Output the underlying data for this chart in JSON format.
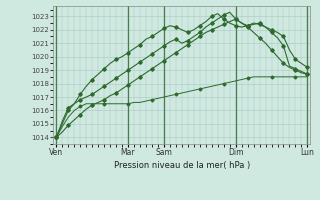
{
  "xlabel": "Pression niveau de la mer( hPa )",
  "bg_color": "#cfe8e0",
  "grid_color": "#a8c8c0",
  "line_color": "#2d6a2d",
  "ylim": [
    1013.5,
    1023.8
  ],
  "yticks": [
    1014,
    1015,
    1016,
    1017,
    1018,
    1019,
    1020,
    1021,
    1022,
    1023
  ],
  "day_labels": [
    "Ven",
    "",
    "Mar",
    "Sam",
    "",
    "Dim",
    "",
    "Lun"
  ],
  "day_positions": [
    0,
    6,
    12,
    18,
    24,
    30,
    36,
    42
  ],
  "vline_positions": [
    0,
    12,
    18,
    30,
    42
  ],
  "vline_labels": [
    "Ven",
    "Mar",
    "Sam",
    "Dim",
    "Lun"
  ],
  "n_points": 43,
  "series": [
    [
      1014.0,
      1014.4,
      1014.9,
      1015.3,
      1015.7,
      1016.1,
      1016.4,
      1016.6,
      1016.8,
      1017.1,
      1017.3,
      1017.6,
      1017.9,
      1018.2,
      1018.5,
      1018.8,
      1019.1,
      1019.4,
      1019.7,
      1020.0,
      1020.3,
      1020.6,
      1020.9,
      1021.2,
      1021.5,
      1021.8,
      1022.0,
      1022.2,
      1022.4,
      1022.6,
      1022.8,
      1022.5,
      1022.2,
      1021.8,
      1021.4,
      1021.0,
      1020.5,
      1020.0,
      1019.5,
      1019.2,
      1019.0,
      1018.8,
      1018.7
    ],
    [
      1014.0,
      1015.0,
      1016.0,
      1016.5,
      1017.2,
      1017.8,
      1018.3,
      1018.7,
      1019.1,
      1019.5,
      1019.8,
      1020.0,
      1020.3,
      1020.6,
      1020.9,
      1021.3,
      1021.5,
      1021.8,
      1022.1,
      1022.3,
      1022.2,
      1022.0,
      1021.8,
      1022.0,
      1022.3,
      1022.6,
      1023.0,
      1023.2,
      1022.8,
      1022.5,
      1022.3,
      1022.2,
      1022.3,
      1022.5,
      1022.4,
      1022.2,
      1022.0,
      1021.8,
      1021.5,
      1020.5,
      1019.8,
      1019.5,
      1019.2
    ],
    [
      1014.0,
      1015.2,
      1016.2,
      1016.5,
      1016.8,
      1017.0,
      1017.2,
      1017.5,
      1017.8,
      1018.1,
      1018.4,
      1018.7,
      1019.0,
      1019.3,
      1019.6,
      1019.9,
      1020.2,
      1020.5,
      1020.8,
      1021.1,
      1021.3,
      1021.0,
      1021.2,
      1021.5,
      1021.8,
      1022.2,
      1022.5,
      1022.8,
      1023.1,
      1023.3,
      1022.8,
      1022.5,
      1022.3,
      1022.4,
      1022.5,
      1022.2,
      1021.8,
      1021.4,
      1020.8,
      1019.3,
      1019.1,
      1018.9,
      1018.7
    ],
    [
      1014.0,
      1014.8,
      1015.5,
      1016.0,
      1016.3,
      1016.5,
      1016.5,
      1016.5,
      1016.5,
      1016.5,
      1016.5,
      1016.5,
      1016.5,
      1016.6,
      1016.6,
      1016.7,
      1016.8,
      1016.9,
      1017.0,
      1017.1,
      1017.2,
      1017.3,
      1017.4,
      1017.5,
      1017.6,
      1017.7,
      1017.8,
      1017.9,
      1018.0,
      1018.1,
      1018.2,
      1018.3,
      1018.4,
      1018.5,
      1018.5,
      1018.5,
      1018.5,
      1018.5,
      1018.5,
      1018.5,
      1018.5,
      1018.5,
      1018.5
    ]
  ]
}
